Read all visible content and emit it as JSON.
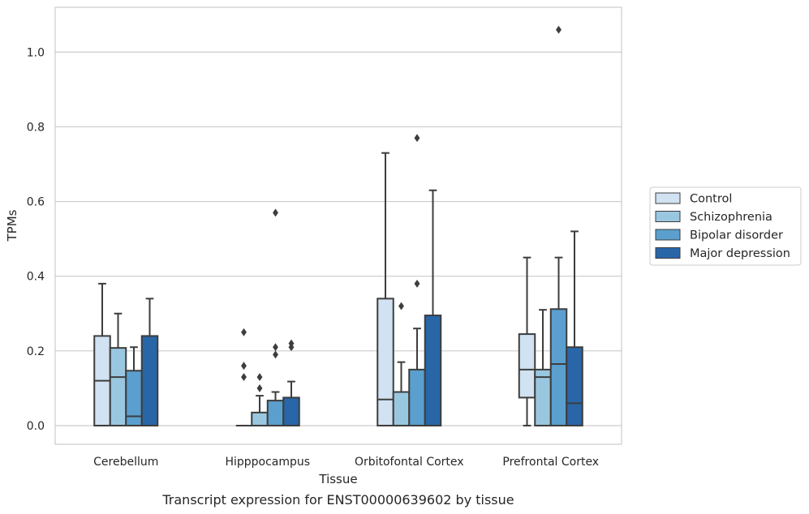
{
  "caption": "Transcript expression for ENST00000639602 by tissue",
  "chart_data": {
    "type": "box",
    "xlabel": "Tissue",
    "ylabel": "TPMs",
    "ylim": [
      -0.05,
      1.12
    ],
    "yticks": [
      0.0,
      0.2,
      0.4,
      0.6,
      0.8,
      1.0
    ],
    "ytick_labels": [
      "0.0",
      "0.2",
      "0.4",
      "0.6",
      "0.8",
      "1.0"
    ],
    "grid": "horizontal",
    "legend_position": "right",
    "categories": [
      "Cerebellum",
      "Hipppocampus",
      "Orbitofontal Cortex",
      "Prefrontal Cortex"
    ],
    "series": [
      {
        "name": "Control",
        "color": "#d1e2f2",
        "boxes": [
          {
            "whislo": 0.0,
            "q1": 0.0,
            "med": 0.12,
            "q3": 0.24,
            "whishi": 0.38,
            "fliers": []
          },
          {
            "whislo": 0.0,
            "q1": 0.0,
            "med": 0.0,
            "q3": 0.0,
            "whishi": 0.0,
            "fliers": [
              0.25,
              0.16,
              0.13
            ]
          },
          {
            "whislo": 0.0,
            "q1": 0.0,
            "med": 0.07,
            "q3": 0.34,
            "whishi": 0.73,
            "fliers": []
          },
          {
            "whislo": 0.0,
            "q1": 0.075,
            "med": 0.15,
            "q3": 0.245,
            "whishi": 0.45,
            "fliers": []
          }
        ]
      },
      {
        "name": "Schizophrenia",
        "color": "#9ac7e0",
        "boxes": [
          {
            "whislo": 0.0,
            "q1": 0.0,
            "med": 0.13,
            "q3": 0.208,
            "whishi": 0.3,
            "fliers": []
          },
          {
            "whislo": 0.0,
            "q1": 0.0,
            "med": 0.0,
            "q3": 0.035,
            "whishi": 0.08,
            "fliers": [
              0.13,
              0.1
            ]
          },
          {
            "whislo": 0.0,
            "q1": 0.0,
            "med": 0.0,
            "q3": 0.09,
            "whishi": 0.17,
            "fliers": [
              0.32
            ]
          },
          {
            "whislo": 0.0,
            "q1": 0.0,
            "med": 0.13,
            "q3": 0.15,
            "whishi": 0.31,
            "fliers": []
          }
        ]
      },
      {
        "name": "Bipolar disorder",
        "color": "#5a9fce",
        "boxes": [
          {
            "whislo": 0.0,
            "q1": 0.0,
            "med": 0.025,
            "q3": 0.147,
            "whishi": 0.21,
            "fliers": []
          },
          {
            "whislo": 0.0,
            "q1": 0.0,
            "med": 0.0,
            "q3": 0.067,
            "whishi": 0.09,
            "fliers": [
              0.57,
              0.21,
              0.19
            ]
          },
          {
            "whislo": 0.0,
            "q1": 0.0,
            "med": 0.0,
            "q3": 0.15,
            "whishi": 0.26,
            "fliers": [
              0.77,
              0.38
            ]
          },
          {
            "whislo": 0.0,
            "q1": 0.0,
            "med": 0.165,
            "q3": 0.312,
            "whishi": 0.45,
            "fliers": [
              1.06
            ]
          }
        ]
      },
      {
        "name": "Major depression",
        "color": "#2866a8",
        "boxes": [
          {
            "whislo": 0.0,
            "q1": 0.0,
            "med": 0.0,
            "q3": 0.24,
            "whishi": 0.34,
            "fliers": []
          },
          {
            "whislo": 0.0,
            "q1": 0.0,
            "med": 0.0,
            "q3": 0.075,
            "whishi": 0.118,
            "fliers": [
              0.22,
              0.21
            ]
          },
          {
            "whislo": 0.0,
            "q1": 0.0,
            "med": 0.0,
            "q3": 0.295,
            "whishi": 0.63,
            "fliers": []
          },
          {
            "whislo": 0.0,
            "q1": 0.0,
            "med": 0.06,
            "q3": 0.21,
            "whishi": 0.52,
            "fliers": []
          }
        ]
      }
    ]
  }
}
